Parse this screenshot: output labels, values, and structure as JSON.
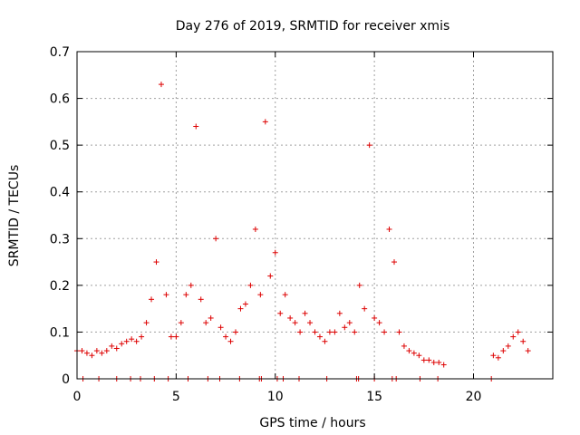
{
  "chart_data": {
    "type": "scatter",
    "title": "Day 276 of 2019, SRMTID for receiver xmis",
    "xlabel": "GPS time / hours",
    "ylabel": "SRMTID / TECUs",
    "xlim": [
      0,
      24
    ],
    "ylim": [
      0,
      0.7
    ],
    "xticks": [
      0,
      5,
      10,
      15,
      20
    ],
    "xtick_labels": [
      "0",
      "5",
      "10",
      "15",
      "20"
    ],
    "yticks": [
      0,
      0.1,
      0.2,
      0.3,
      0.4,
      0.5,
      0.6,
      0.7
    ],
    "ytick_labels": [
      "0",
      "0.1",
      "0.2",
      "0.3",
      "0.4",
      "0.5",
      "0.6",
      "0.7"
    ],
    "grid": true,
    "marker": "plus",
    "color": "#dd0000",
    "x_increment_hours": 0.25,
    "series": [
      {
        "name": "SRMTID",
        "segments": [
          {
            "x_start": 0.0,
            "values": [
              0.06,
              0.06,
              0.055,
              0.05,
              0.06,
              0.055,
              0.06,
              0.07,
              0.065,
              0.075,
              0.08,
              0.085,
              0.08,
              0.09,
              0.12,
              0.17,
              0.25,
              0.63,
              0.18,
              0.09,
              0.09,
              0.12,
              0.18,
              0.2,
              0.54,
              0.17,
              0.12,
              0.13,
              0.3,
              0.11,
              0.09,
              0.08,
              0.1,
              0.15,
              0.16,
              0.2,
              0.32,
              0.18,
              0.55,
              0.22,
              0.27,
              0.14,
              0.18,
              0.13,
              0.12,
              0.1,
              0.14,
              0.12,
              0.1,
              0.09,
              0.08,
              0.1,
              0.1,
              0.14,
              0.11,
              0.12,
              0.1,
              0.2,
              0.15,
              0.5,
              0.13,
              0.12,
              0.1,
              0.32,
              0.25,
              0.1,
              0.07,
              0.06,
              0.055,
              0.05,
              0.04,
              0.04,
              0.035,
              0.035,
              0.03
            ]
          },
          {
            "x_start": 21.0,
            "values": [
              0.05,
              0.045,
              0.06,
              0.07,
              0.09,
              0.1,
              0.08,
              0.06
            ]
          }
        ]
      }
    ],
    "zero_value_hours": [
      0.3,
      1.1,
      2.0,
      2.7,
      3.2,
      3.9,
      4.6,
      5.6,
      6.6,
      7.2,
      8.2,
      9.2,
      9.3,
      10.1,
      10.4,
      11.2,
      12.6,
      14.1,
      14.2,
      15.0,
      15.9,
      16.1,
      17.3,
      18.2,
      20.9
    ]
  }
}
